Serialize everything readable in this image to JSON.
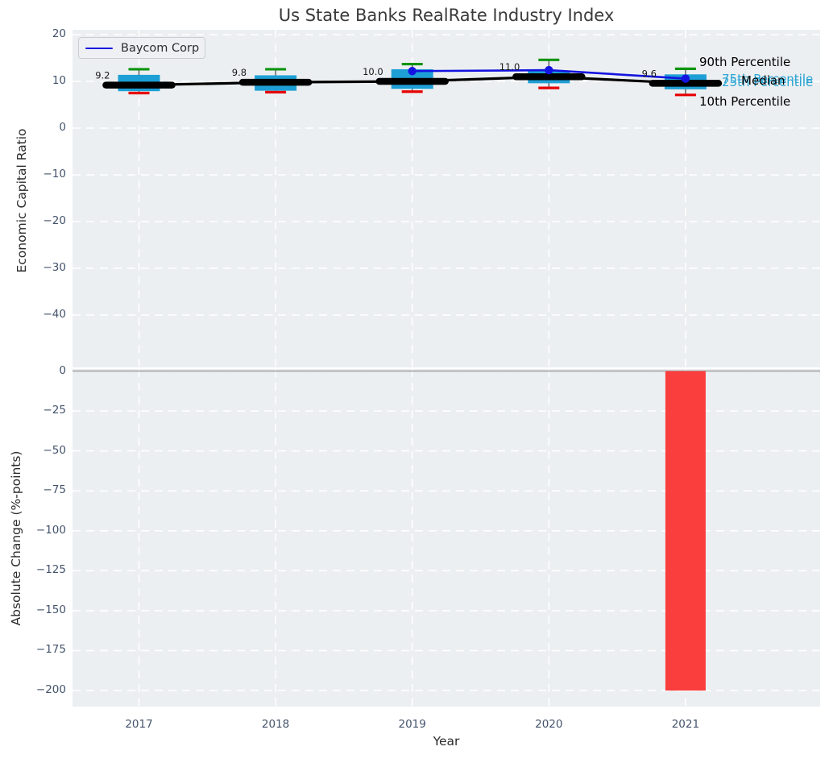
{
  "title": "Us State Banks RealRate Industry Index",
  "legend": {
    "label": "Baycom Corp"
  },
  "colors": {
    "background": "#eceff1",
    "grid": "#ffffff",
    "box_fill": "#1d9fd5",
    "p90_green": "#0d9410",
    "p10_red": "#e60000",
    "median_black": "#000000",
    "whisker": "#4d4d4d",
    "accent_blue": "#1414e0",
    "bar_red": "#fa3e3e",
    "zero_line": "#a9a9a9",
    "tick_text": "#44536b",
    "cyan_text": "#2aa5d5"
  },
  "percentile_labels": {
    "p90": {
      "text": "90th Percentile",
      "color": "#000000"
    },
    "p75": {
      "text": "75th Percentile",
      "color": "#2aa5d5"
    },
    "median": {
      "text": "Median",
      "color": "#000000"
    },
    "p25": {
      "text": "25th Percentile",
      "color": "#2aa5d5"
    },
    "p10": {
      "text": "10th Percentile",
      "color": "#000000"
    }
  },
  "chart_data": [
    {
      "type": "box-line",
      "title": "Us State Banks RealRate Industry Index",
      "ylabel": "Economic Capital Ratio",
      "xlabel": "",
      "categories": [
        "2017",
        "2018",
        "2019",
        "2020",
        "2021"
      ],
      "yticks": [
        20,
        10,
        0,
        -10,
        -20,
        -30,
        -40
      ],
      "ylim": [
        -51,
        21
      ],
      "grid": true,
      "legend_position": "upper left",
      "box_stats": [
        {
          "year": "2017",
          "p90": 12.6,
          "p75": 11.4,
          "median": 9.2,
          "p25": 7.9,
          "p10": 7.5
        },
        {
          "year": "2018",
          "p90": 12.6,
          "p75": 11.3,
          "median": 9.8,
          "p25": 8.0,
          "p10": 7.7
        },
        {
          "year": "2019",
          "p90": 13.7,
          "p75": 12.6,
          "median": 10.0,
          "p25": 8.4,
          "p10": 7.8
        },
        {
          "year": "2020",
          "p90": 14.6,
          "p75": 12.2,
          "median": 11.0,
          "p25": 9.6,
          "p10": 8.6
        },
        {
          "year": "2021",
          "p90": 12.7,
          "p75": 11.5,
          "median": 9.6,
          "p25": 8.3,
          "p10": 7.1
        }
      ],
      "median_labels": [
        "9.2",
        "9.8",
        "10.0",
        "11.0",
        "9.6"
      ],
      "series": [
        {
          "name": "Median",
          "x": [
            "2017",
            "2018",
            "2019",
            "2020",
            "2021"
          ],
          "values": [
            9.2,
            9.8,
            10.0,
            11.0,
            9.6
          ]
        },
        {
          "name": "Baycom Corp",
          "x": [
            "2019",
            "2020",
            "2021"
          ],
          "values": [
            12.2,
            12.4,
            10.6
          ]
        }
      ]
    },
    {
      "type": "bar",
      "ylabel": "Absolute Change (%-points)",
      "xlabel": "Year",
      "categories": [
        "2017",
        "2018",
        "2019",
        "2020",
        "2021"
      ],
      "values": [
        null,
        null,
        null,
        null,
        -200
      ],
      "yticks": [
        0,
        -25,
        -50,
        -75,
        -100,
        -125,
        -150,
        -175,
        -200
      ],
      "ylim": [
        -210,
        2
      ],
      "grid": true,
      "zero_line": true
    }
  ]
}
